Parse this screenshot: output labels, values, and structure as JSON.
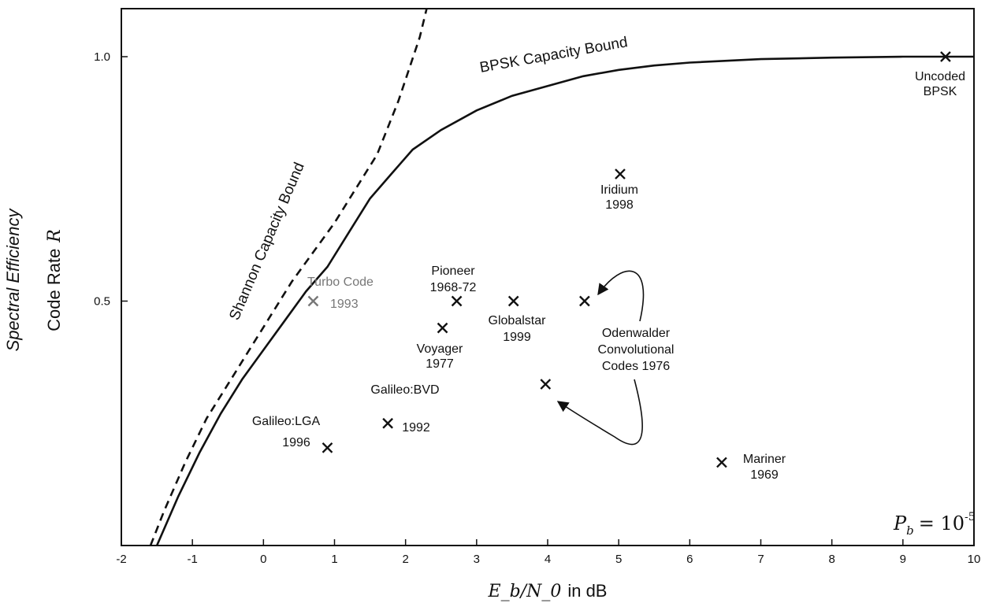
{
  "chart_data": {
    "type": "scatter",
    "title": "",
    "x": {
      "label_math": "E_b/N_0",
      "label_text": "in dB",
      "range": [
        -2,
        10
      ],
      "ticks": [
        "-2",
        "-1",
        "0",
        "1",
        "2",
        "3",
        "4",
        "5",
        "6",
        "7",
        "8",
        "9",
        "10"
      ]
    },
    "y": {
      "label_line1": "Spectral Efficiency",
      "label_line2": "Code Rate",
      "label_symbol": "R",
      "range": [
        0,
        1.1
      ],
      "ticks": [
        "0.5",
        "1.0"
      ]
    },
    "grid": false,
    "annotation": {
      "symbol": "P",
      "subscript": "b",
      "equals": "= 10",
      "exponent": "-5"
    },
    "curves": [
      {
        "name": "Shannon Capacity Bound",
        "style": "dashed",
        "points": [
          [
            -1.59,
            0
          ],
          [
            -1.4,
            0.07
          ],
          [
            -1.1,
            0.17
          ],
          [
            -0.8,
            0.26
          ],
          [
            -0.5,
            0.33
          ],
          [
            -0.2,
            0.4
          ],
          [
            0.1,
            0.47
          ],
          [
            0.4,
            0.54
          ],
          [
            0.7,
            0.6
          ],
          [
            1.0,
            0.66
          ],
          [
            1.3,
            0.73
          ],
          [
            1.6,
            0.8
          ],
          [
            1.9,
            0.91
          ],
          [
            2.2,
            1.04
          ],
          [
            2.3,
            1.1
          ]
        ]
      },
      {
        "name": "BPSK Capacity Bound",
        "style": "solid",
        "points": [
          [
            -1.5,
            0
          ],
          [
            -1.2,
            0.1
          ],
          [
            -0.9,
            0.19
          ],
          [
            -0.6,
            0.27
          ],
          [
            -0.3,
            0.34
          ],
          [
            0,
            0.4
          ],
          [
            0.3,
            0.46
          ],
          [
            0.6,
            0.52
          ],
          [
            0.9,
            0.57
          ],
          [
            1.2,
            0.64
          ],
          [
            1.5,
            0.71
          ],
          [
            1.8,
            0.76
          ],
          [
            2.1,
            0.81
          ],
          [
            2.5,
            0.85
          ],
          [
            3.0,
            0.89
          ],
          [
            3.5,
            0.92
          ],
          [
            4.0,
            0.94
          ],
          [
            4.5,
            0.96
          ],
          [
            5.0,
            0.973
          ],
          [
            5.5,
            0.982
          ],
          [
            6.0,
            0.988
          ],
          [
            7.0,
            0.995
          ],
          [
            8.0,
            0.998
          ],
          [
            9.0,
            1.0
          ],
          [
            10.0,
            1.0
          ]
        ]
      }
    ],
    "points": [
      {
        "x": 9.6,
        "y": 1.0,
        "label": [
          "Uncoded",
          "BPSK"
        ],
        "color": "#111111"
      },
      {
        "x": 5.02,
        "y": 0.76,
        "label": [
          "Iridium",
          "1998"
        ],
        "color": "#111111"
      },
      {
        "x": 0.7,
        "y": 0.5,
        "label": [
          "Turbo Code",
          "1993"
        ],
        "color": "#777777"
      },
      {
        "x": 2.72,
        "y": 0.5,
        "label": [
          "Pioneer",
          "1968-72"
        ],
        "color": "#111111"
      },
      {
        "x": 2.52,
        "y": 0.445,
        "label": [
          "Voyager",
          "1977"
        ],
        "color": "#111111"
      },
      {
        "x": 3.52,
        "y": 0.5,
        "label": [
          "Globalstar",
          "1999"
        ],
        "color": "#111111"
      },
      {
        "x": 4.52,
        "y": 0.5,
        "label": [],
        "color": "#111111"
      },
      {
        "x": 3.97,
        "y": 0.33,
        "label": [],
        "color": "#111111"
      },
      {
        "x": 0.9,
        "y": 0.2,
        "label": [
          "Galileo:LGA",
          "1996"
        ],
        "color": "#111111"
      },
      {
        "x": 1.75,
        "y": 0.25,
        "label": [
          "Galileo:BVD",
          "1992"
        ],
        "color": "#111111"
      },
      {
        "x": 6.45,
        "y": 0.17,
        "label": [
          "Mariner",
          "1969"
        ],
        "color": "#111111"
      }
    ],
    "group_label": [
      "Odenwalder",
      "Convolutional",
      "Codes 1976"
    ]
  }
}
